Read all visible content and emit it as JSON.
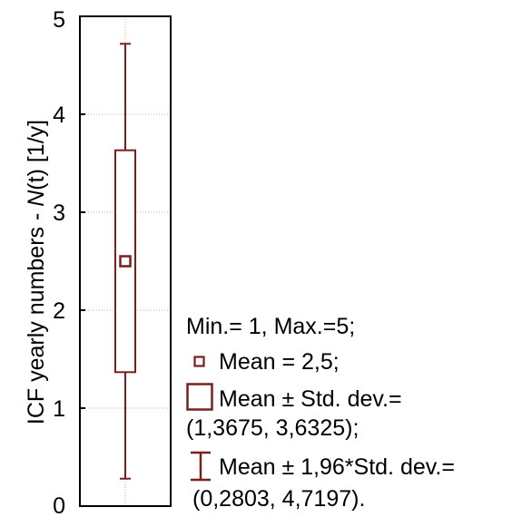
{
  "chart_data": {
    "type": "box",
    "ylabel_prefix": "ICF yearly numbers - ",
    "ylabel_italic": "N",
    "ylabel_paren": "(t)",
    "ylabel_unit": "  [1/y]",
    "ylim": [
      0,
      5
    ],
    "yticks": [
      0,
      1,
      2,
      3,
      4,
      5
    ],
    "ytick_labels": [
      "0",
      "1",
      "2",
      "3",
      "4",
      "5"
    ],
    "grid": true,
    "box": {
      "min": 1,
      "max": 5,
      "mean": 2.5,
      "box_low": 1.3675,
      "box_high": 3.6325,
      "whisker_low": 0.2803,
      "whisker_high": 4.7197
    },
    "colors": {
      "series": "#7a1f1f",
      "axis": "#000000",
      "grid": "#b0b0b0"
    }
  },
  "legend": {
    "line1": "Min.= 1, Max.=5;",
    "line2": "Mean = 2,5;",
    "line3": "Mean ± Std. dev.=",
    "line4": "(1,3675, 3,6325);",
    "line5": "Mean ± 1,96*Std. dev.=",
    "line6": "(0,2803, 4,7197)."
  }
}
